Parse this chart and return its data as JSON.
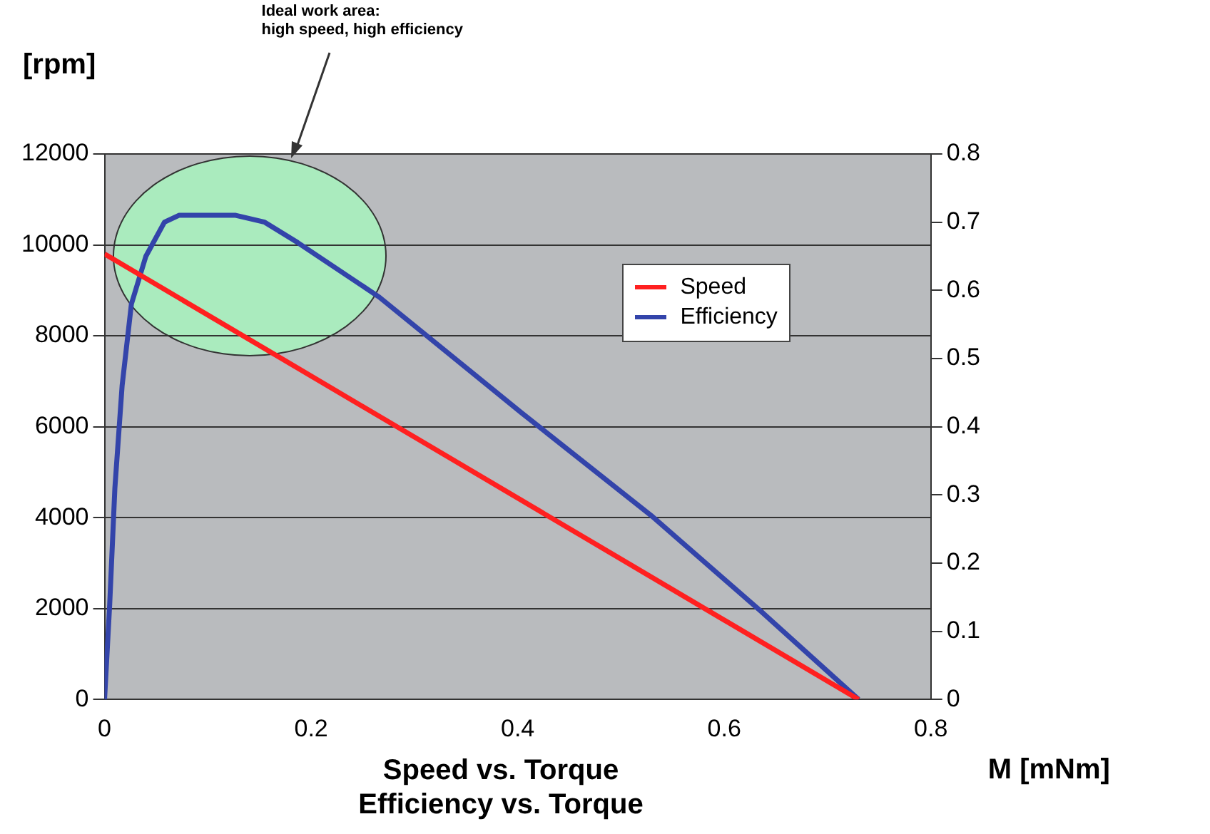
{
  "chart_data": {
    "type": "line",
    "title": [
      "Speed vs. Torque",
      "Efficiency vs. Torque"
    ],
    "xlabel": "M [mNm]",
    "ylabel": "[rpm]",
    "annotations": [
      "Ideal work area:\nhigh speed, high efficiency"
    ],
    "series": [
      {
        "name": "Speed",
        "color": "#ff2020",
        "x": [
          0,
          0.73
        ],
        "values": [
          9800,
          0
        ]
      },
      {
        "name": "Efficiency",
        "color": "#3344aa",
        "axis": "y2",
        "x": [
          0,
          0.005,
          0.01,
          0.017,
          0.026,
          0.04,
          0.058,
          0.072,
          0.127,
          0.155,
          0.187,
          0.266,
          0.404,
          0.529,
          0.635,
          0.73
        ],
        "values": [
          0,
          0.14,
          0.31,
          0.46,
          0.58,
          0.65,
          0.7,
          0.71,
          0.71,
          0.7,
          0.67,
          0.59,
          0.42,
          0.27,
          0.13,
          0
        ]
      }
    ],
    "xlim": [
      0,
      0.8
    ],
    "xticks": [
      0,
      0.2,
      0.4,
      0.6,
      0.8
    ],
    "ylim": [
      0,
      12000
    ],
    "yticks": [
      0,
      2000,
      4000,
      6000,
      8000,
      10000,
      12000
    ],
    "y2lim": [
      0,
      0.8
    ],
    "y2ticks": [
      0,
      0.1,
      0.2,
      0.3,
      0.4,
      0.5,
      0.6,
      0.7,
      0.8
    ],
    "grid": "y",
    "legend": "top right",
    "marker": "none",
    "line_style": "solid"
  }
}
